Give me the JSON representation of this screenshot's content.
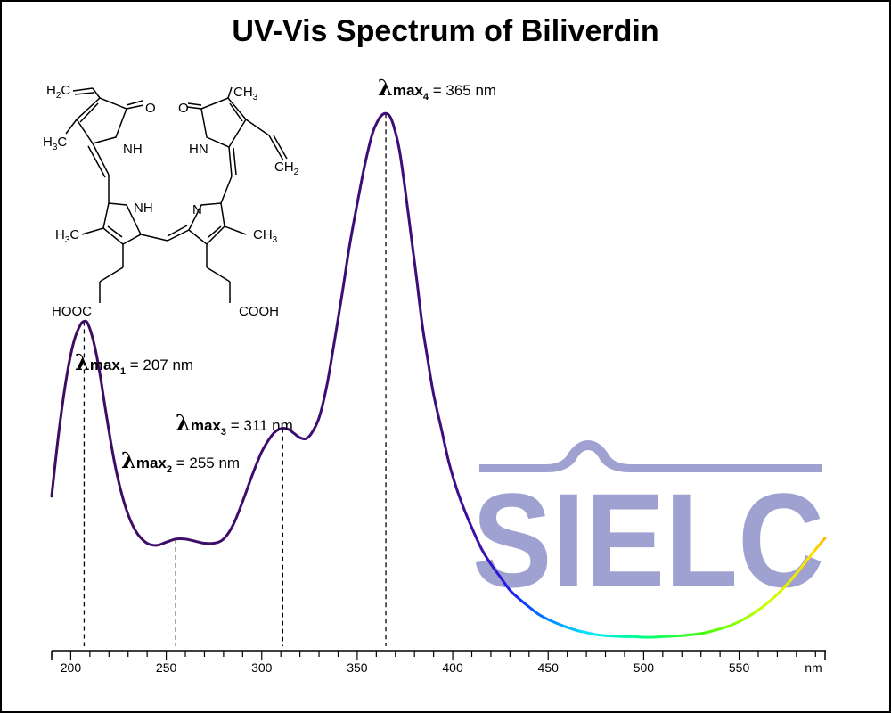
{
  "chart_data": {
    "type": "line",
    "title": "UV-Vis Spectrum of Biliverdin",
    "xlabel": "",
    "x_unit_label": "nm",
    "ylabel": "",
    "xlim": [
      190,
      595
    ],
    "ylim": [
      0,
      1
    ],
    "xticks": [
      200,
      250,
      300,
      350,
      400,
      450,
      500,
      550
    ],
    "grid": false,
    "line_coloring": "wavelength-mapped spectrum (dark purple in UV, blue→cyan→green→yellow in visible)",
    "series": [
      {
        "x": [
          190,
          193,
          196,
          199,
          202,
          205,
          207,
          209,
          212,
          215,
          218,
          221,
          224,
          227,
          230,
          233,
          236,
          240,
          245,
          250,
          255,
          260,
          265,
          270,
          275,
          280,
          285,
          290,
          295,
          300,
          305,
          308,
          311,
          314,
          317,
          320,
          323,
          326,
          330,
          334,
          338,
          342,
          346,
          350,
          354,
          358,
          361,
          363,
          365,
          367,
          369,
          372,
          375,
          378,
          381,
          384,
          387,
          390,
          394,
          398,
          402,
          406,
          410,
          415,
          420,
          425,
          430,
          435,
          440,
          445,
          450,
          455,
          460,
          465,
          470,
          475,
          480,
          485,
          490,
          495,
          500,
          505,
          510,
          515,
          520,
          525,
          530,
          535,
          540,
          545,
          550,
          555,
          560,
          565,
          570,
          575,
          580,
          585,
          590,
          595
        ],
        "y": [
          0.27,
          0.37,
          0.455,
          0.523,
          0.571,
          0.598,
          0.605,
          0.6,
          0.565,
          0.51,
          0.44,
          0.373,
          0.315,
          0.27,
          0.235,
          0.21,
          0.193,
          0.18,
          0.176,
          0.182,
          0.188,
          0.188,
          0.184,
          0.18,
          0.18,
          0.188,
          0.215,
          0.26,
          0.31,
          0.355,
          0.385,
          0.396,
          0.4,
          0.398,
          0.39,
          0.382,
          0.38,
          0.39,
          0.42,
          0.48,
          0.565,
          0.655,
          0.75,
          0.83,
          0.905,
          0.965,
          0.99,
          1.0,
          1.003,
          0.998,
          0.98,
          0.935,
          0.86,
          0.775,
          0.69,
          0.6,
          0.53,
          0.465,
          0.4,
          0.335,
          0.285,
          0.245,
          0.21,
          0.17,
          0.14,
          0.115,
          0.09,
          0.073,
          0.058,
          0.044,
          0.034,
          0.026,
          0.019,
          0.013,
          0.009,
          0.005,
          0.003,
          0.002,
          0.001,
          0.001,
          0.0,
          0.0,
          0.001,
          0.002,
          0.003,
          0.005,
          0.007,
          0.011,
          0.016,
          0.022,
          0.03,
          0.04,
          0.052,
          0.066,
          0.082,
          0.101,
          0.122,
          0.145,
          0.168,
          0.19
        ]
      }
    ],
    "peaks": [
      {
        "prefix": "λ",
        "main": "max",
        "sub": "1",
        "label": "= 207 nm",
        "x": 207,
        "y": 0.605,
        "label_pos": "above-right"
      },
      {
        "prefix": "λ",
        "main": "max",
        "sub": "2",
        "label": "= 255 nm",
        "x": 255,
        "y": 0.188,
        "label_pos": "above-left"
      },
      {
        "prefix": "λ",
        "main": "max",
        "sub": "3",
        "label": "= 311 nm",
        "x": 311,
        "y": 0.4,
        "label_pos": "above-left"
      },
      {
        "prefix": "λ",
        "main": "max",
        "sub": "4",
        "label": "= 365 nm",
        "x": 365,
        "y": 1.003,
        "label_pos": "above"
      }
    ]
  },
  "structure": {
    "atoms": [
      "H2C",
      "O",
      "O",
      "CH3",
      "H3C",
      "NH",
      "HN",
      "CH2",
      "NH",
      "N",
      "H3C",
      "CH3",
      "HOOC",
      "COOH"
    ]
  },
  "watermark": {
    "text": "SIELC",
    "color": "#9a9cce"
  }
}
